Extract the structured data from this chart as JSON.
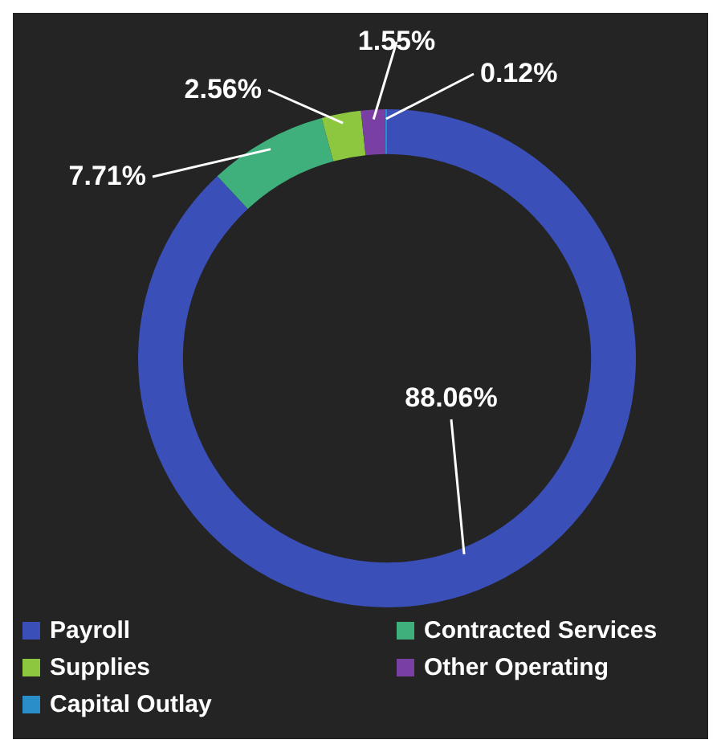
{
  "chart_data": {
    "type": "donut",
    "categories": [
      "Payroll",
      "Contracted Services",
      "Supplies",
      "Other Operating",
      "Capital Outlay"
    ],
    "values": [
      88.06,
      7.71,
      2.56,
      1.55,
      0.12
    ],
    "value_labels": [
      "88.06%",
      "7.71%",
      "2.56%",
      "1.55%",
      "0.12%"
    ],
    "colors": [
      "#3b4fb8",
      "#3fb07c",
      "#8dc63f",
      "#7a3fa3",
      "#2a8fc8"
    ],
    "legend": "bottom"
  }
}
